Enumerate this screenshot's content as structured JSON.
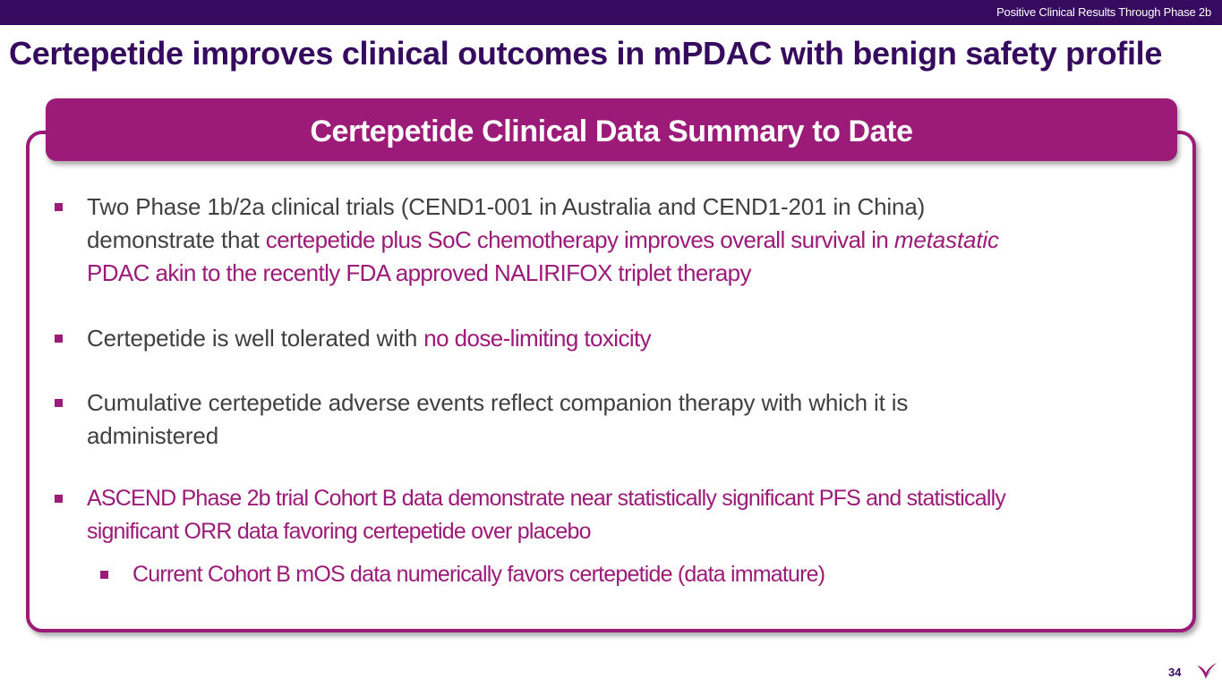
{
  "header_bar": {
    "section_label": "Positive Clinical Results Through Phase 2b"
  },
  "slide": {
    "title": "Certepetide improves clinical outcomes in mPDAC with benign safety profile",
    "page_number": "34"
  },
  "summary_box": {
    "title": "Certepetide Clinical Data Summary to Date",
    "bullets": [
      {
        "line1": "Two Phase 1b/2a clinical trials (CEND1-001 in Australia and CEND1-201 in China)",
        "line2_plain": "demonstrate that ",
        "line2_highlight": "certepetide plus SoC chemotherapy improves overall survival in ",
        "line2_italic": "metastatic",
        "line3_highlight": "PDAC akin to the recently FDA approved NALIRIFOX triplet therapy"
      },
      {
        "plain": "Certepetide is well tolerated with ",
        "highlight": "no dose-limiting toxicity"
      },
      {
        "line1": "Cumulative certepetide adverse events reflect companion therapy with which it is",
        "line2": "administered"
      },
      {
        "line1": "ASCEND Phase 2b trial Cohort B data demonstrate near statistically significant PFS and statistically",
        "line2": "significant ORR data favoring certepetide over placebo"
      }
    ],
    "sub_bullet": "Current Cohort B mOS data numerically favors certepetide (data immature)"
  },
  "colors": {
    "navy": "#360a5e",
    "magenta": "#9c1a78",
    "body_text": "#404040"
  },
  "icons": {
    "logo": "bird-logo-icon"
  }
}
